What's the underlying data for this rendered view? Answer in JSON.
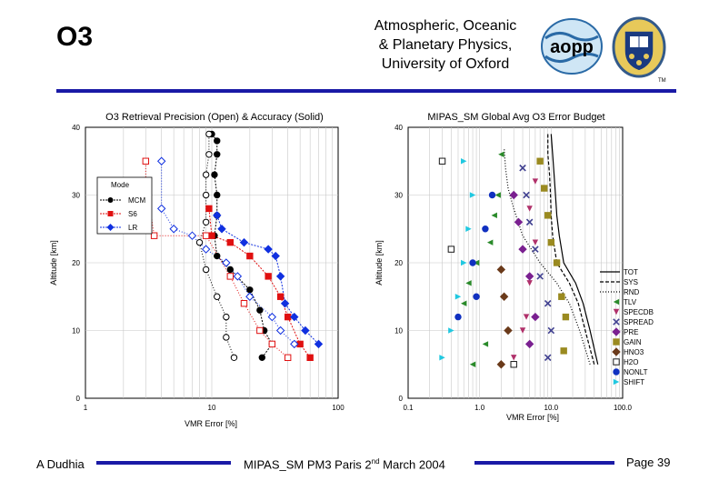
{
  "header": {
    "slide_title": "O3",
    "institution_line1": "Atmospheric, Oceanic",
    "institution_line2": "& Planetary Physics,",
    "institution_line3": "University of Oxford",
    "aopp_logo_text": "aopp",
    "crest_label": "TM"
  },
  "footer": {
    "author": "A Dudhia",
    "event_main": "MIPAS_SM PM3 Paris 2",
    "event_sup": "nd",
    "event_rest": " March 2004",
    "page": "Page 39"
  },
  "colors": {
    "rule": "#1a1aa6",
    "MCM": "#000000",
    "S6": "#e01010",
    "LR": "#1030e0"
  },
  "chart_data": [
    {
      "type": "line",
      "title": "O3 Retrieval Precision (Open) & Accuracy (Solid)",
      "xlabel": "VMR Error [%]",
      "ylabel": "Altitude [km]",
      "xscale": "log",
      "xlim": [
        1,
        100
      ],
      "ylim": [
        0,
        40
      ],
      "xticks": [
        "1",
        "10",
        "100"
      ],
      "yticks": [
        "0",
        "10",
        "20",
        "30",
        "40"
      ],
      "legend_title": "Mode",
      "legend": [
        "MCM",
        "S6",
        "LR"
      ],
      "series": [
        {
          "name": "MCM",
          "kind": "accuracy",
          "color": "#000000",
          "marker": "circle",
          "filled": true,
          "points": [
            [
              25,
              6
            ],
            [
              30,
              8
            ],
            [
              26,
              10
            ],
            [
              24,
              13
            ],
            [
              20,
              16
            ],
            [
              14,
              19
            ],
            [
              11,
              21
            ],
            [
              10.5,
              24
            ],
            [
              11,
              27
            ],
            [
              11,
              30
            ],
            [
              10.5,
              33
            ],
            [
              11,
              36
            ],
            [
              11,
              38
            ],
            [
              10,
              39
            ]
          ]
        },
        {
          "name": "MCM",
          "kind": "precision",
          "color": "#000000",
          "marker": "circle",
          "filled": false,
          "points": [
            [
              15,
              6
            ],
            [
              13,
              9
            ],
            [
              13,
              12
            ],
            [
              11,
              15
            ],
            [
              9,
              19
            ],
            [
              8,
              23
            ],
            [
              9,
              26
            ],
            [
              9,
              30
            ],
            [
              9,
              33
            ],
            [
              9.5,
              36
            ],
            [
              9.5,
              39
            ]
          ]
        },
        {
          "name": "S6",
          "kind": "accuracy",
          "color": "#e01010",
          "marker": "square",
          "filled": true,
          "points": [
            [
              60,
              6
            ],
            [
              50,
              8
            ],
            [
              40,
              12
            ],
            [
              35,
              15
            ],
            [
              28,
              18
            ],
            [
              20,
              21
            ],
            [
              14,
              23
            ],
            [
              10,
              24
            ],
            [
              9.5,
              28
            ]
          ]
        },
        {
          "name": "S6",
          "kind": "precision",
          "color": "#e01010",
          "marker": "square",
          "filled": false,
          "points": [
            [
              40,
              6
            ],
            [
              30,
              8
            ],
            [
              24,
              10
            ],
            [
              18,
              14
            ],
            [
              14,
              18
            ],
            [
              9,
              24
            ],
            [
              3.5,
              24
            ],
            [
              3,
              32
            ],
            [
              3,
              35
            ]
          ]
        },
        {
          "name": "LR",
          "kind": "accuracy",
          "color": "#1030e0",
          "marker": "diamond",
          "filled": true,
          "points": [
            [
              70,
              8
            ],
            [
              55,
              10
            ],
            [
              45,
              12
            ],
            [
              38,
              14
            ],
            [
              35,
              18
            ],
            [
              32,
              21
            ],
            [
              28,
              22
            ],
            [
              18,
              23
            ],
            [
              12,
              25
            ],
            [
              11,
              27
            ]
          ]
        },
        {
          "name": "LR",
          "kind": "precision",
          "color": "#1030e0",
          "marker": "diamond",
          "filled": false,
          "points": [
            [
              45,
              8
            ],
            [
              35,
              10
            ],
            [
              30,
              12
            ],
            [
              20,
              15
            ],
            [
              16,
              18
            ],
            [
              13,
              20
            ],
            [
              9,
              22
            ],
            [
              7,
              24
            ],
            [
              5,
              25
            ],
            [
              4,
              28
            ],
            [
              4,
              35
            ]
          ]
        }
      ]
    },
    {
      "type": "scatter",
      "title": "MIPAS_SM Global Avg O3 Error Budget",
      "xlabel": "VMR Error [%]",
      "ylabel": "Altitude [km]",
      "xscale": "log",
      "xlim": [
        0.1,
        100
      ],
      "ylim": [
        0,
        40
      ],
      "xticks": [
        "0.1",
        "1.0",
        "10.0",
        "100.0"
      ],
      "yticks": [
        "0",
        "10",
        "20",
        "30",
        "40"
      ],
      "legend": [
        "TOT",
        "SYS",
        "RND",
        "TLV",
        "SPECDB",
        "SPREAD",
        "PRE",
        "GAIN",
        "HNO3",
        "H2O",
        "NONLT",
        "SHIFT"
      ],
      "lines": [
        {
          "name": "TOT",
          "style": "solid",
          "points": [
            [
              45,
              5
            ],
            [
              35,
              10
            ],
            [
              28,
              14
            ],
            [
              22,
              17
            ],
            [
              15,
              20
            ],
            [
              13,
              24
            ],
            [
              12,
              27
            ],
            [
              11.5,
              30
            ],
            [
              11,
              33
            ],
            [
              10.5,
              36
            ],
            [
              10,
              39
            ]
          ]
        },
        {
          "name": "SYS",
          "style": "dashed",
          "points": [
            [
              40,
              5
            ],
            [
              30,
              10
            ],
            [
              24,
              14
            ],
            [
              18,
              17
            ],
            [
              12,
              20
            ],
            [
              10.5,
              24
            ],
            [
              10,
              27
            ],
            [
              9.8,
              30
            ],
            [
              9.5,
              33
            ],
            [
              9,
              36
            ],
            [
              9,
              39
            ]
          ]
        },
        {
          "name": "RND",
          "style": "dotted",
          "points": [
            [
              35,
              5
            ],
            [
              25,
              10
            ],
            [
              18,
              14
            ],
            [
              12,
              17
            ],
            [
              7,
              20
            ],
            [
              4,
              24
            ],
            [
              3,
              28
            ],
            [
              2.5,
              31
            ],
            [
              2.3,
              34
            ],
            [
              2.2,
              37
            ]
          ]
        }
      ],
      "marker_series": [
        {
          "name": "TLV",
          "color": "#2a8a2a",
          "marker": "triangle-left",
          "points": [
            [
              0.8,
              5
            ],
            [
              1.2,
              8
            ],
            [
              0.6,
              14
            ],
            [
              0.7,
              17
            ],
            [
              0.9,
              20
            ],
            [
              1.4,
              23
            ],
            [
              1.6,
              27
            ],
            [
              1.8,
              30
            ],
            [
              2,
              36
            ]
          ]
        },
        {
          "name": "SPECDB",
          "color": "#b0306a",
          "marker": "triangle-down",
          "points": [
            [
              3,
              6
            ],
            [
              4,
              10
            ],
            [
              4.5,
              12
            ],
            [
              5,
              17
            ],
            [
              6,
              23
            ],
            [
              5,
              28
            ],
            [
              6,
              32
            ]
          ]
        },
        {
          "name": "SPREAD",
          "color": "#404090",
          "marker": "x",
          "points": [
            [
              9,
              6
            ],
            [
              10,
              10
            ],
            [
              9,
              14
            ],
            [
              7,
              18
            ],
            [
              6,
              22
            ],
            [
              5,
              26
            ],
            [
              4.5,
              30
            ],
            [
              4,
              34
            ]
          ]
        },
        {
          "name": "PRE",
          "color": "#7a2090",
          "marker": "diamond",
          "points": [
            [
              5,
              8
            ],
            [
              6,
              12
            ],
            [
              5,
              18
            ],
            [
              4,
              22
            ],
            [
              3.5,
              26
            ],
            [
              3,
              30
            ]
          ]
        },
        {
          "name": "GAIN",
          "color": "#9a8a20",
          "marker": "square",
          "points": [
            [
              15,
              7
            ],
            [
              16,
              12
            ],
            [
              14,
              15
            ],
            [
              12,
              20
            ],
            [
              10,
              23
            ],
            [
              9,
              27
            ],
            [
              8,
              31
            ],
            [
              7,
              35
            ]
          ]
        },
        {
          "name": "HNO3",
          "color": "#6a3a1a",
          "marker": "diamond",
          "points": [
            [
              2,
              5
            ],
            [
              2.5,
              10
            ],
            [
              2.2,
              15
            ],
            [
              2,
              19
            ]
          ]
        },
        {
          "name": "H2O",
          "color": "#1a1a1a",
          "marker": "square-open",
          "points": [
            [
              3,
              5
            ],
            [
              0.4,
              22
            ],
            [
              0.3,
              35
            ]
          ]
        },
        {
          "name": "NONLT",
          "color": "#1030c0",
          "marker": "circle",
          "points": [
            [
              0.5,
              12
            ],
            [
              0.9,
              15
            ],
            [
              0.8,
              20
            ],
            [
              1.2,
              25
            ],
            [
              1.5,
              30
            ]
          ]
        },
        {
          "name": "SHIFT",
          "color": "#20c8e0",
          "marker": "triangle-right",
          "points": [
            [
              0.3,
              6
            ],
            [
              0.4,
              10
            ],
            [
              0.5,
              15
            ],
            [
              0.6,
              20
            ],
            [
              0.7,
              25
            ],
            [
              0.8,
              30
            ],
            [
              0.6,
              35
            ]
          ]
        }
      ]
    }
  ]
}
